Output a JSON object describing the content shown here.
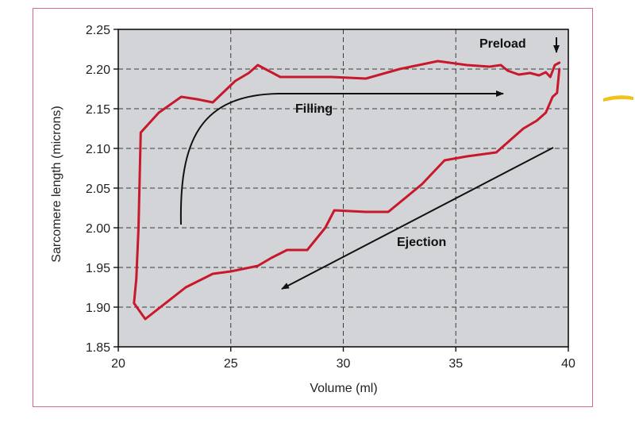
{
  "chart_data": {
    "type": "line",
    "title": "",
    "xlabel": "Volume (ml)",
    "ylabel": "Sarcomere length (microns)",
    "xlim": [
      20,
      40
    ],
    "ylim": [
      1.85,
      2.25
    ],
    "x_ticks": [
      "20",
      "25",
      "30",
      "35",
      "40"
    ],
    "y_ticks": [
      "1.85",
      "1.90",
      "1.95",
      "2.00",
      "2.05",
      "2.10",
      "2.15",
      "2.20",
      "2.25"
    ],
    "grid": true,
    "colors": {
      "loop": "#c8182c",
      "plot_bg": "#d3d4d8",
      "frame": "#d86a8a",
      "arrows": "#111111",
      "marker": "#f2c21a"
    },
    "series": [
      {
        "x": [
          39.6,
          39.5,
          39.3,
          39.0,
          38.6,
          38.0,
          37.4,
          36.8,
          35.5,
          34.5,
          33.5,
          32.0,
          31.0,
          29.6,
          29.2,
          28.4,
          27.5,
          26.8,
          26.2,
          25.0,
          24.2,
          23.0,
          21.2,
          20.7,
          20.8,
          20.9,
          21.0,
          21.8,
          22.8,
          23.5,
          24.2,
          25.2,
          25.8,
          26.2,
          27.2,
          28.5,
          29.5,
          31.0,
          32.5,
          34.2,
          35.5,
          36.5,
          37.0,
          37.3,
          37.8,
          38.3,
          38.7,
          39.0,
          39.2,
          39.4,
          39.6
        ],
        "y": [
          2.2,
          2.17,
          2.165,
          2.145,
          2.135,
          2.125,
          2.11,
          2.095,
          2.09,
          2.085,
          2.055,
          2.02,
          2.02,
          2.022,
          2.0,
          1.972,
          1.972,
          1.962,
          1.952,
          1.945,
          1.942,
          1.925,
          1.885,
          1.905,
          1.935,
          2.0,
          2.12,
          2.145,
          2.165,
          2.162,
          2.158,
          2.185,
          2.195,
          2.205,
          2.19,
          2.19,
          2.19,
          2.188,
          2.2,
          2.21,
          2.205,
          2.203,
          2.205,
          2.198,
          2.193,
          2.195,
          2.192,
          2.196,
          2.19,
          2.205,
          2.208
        ]
      }
    ],
    "annotations": [
      {
        "text": "Filling"
      },
      {
        "text": "Ejection"
      },
      {
        "text": "Preload"
      }
    ]
  }
}
